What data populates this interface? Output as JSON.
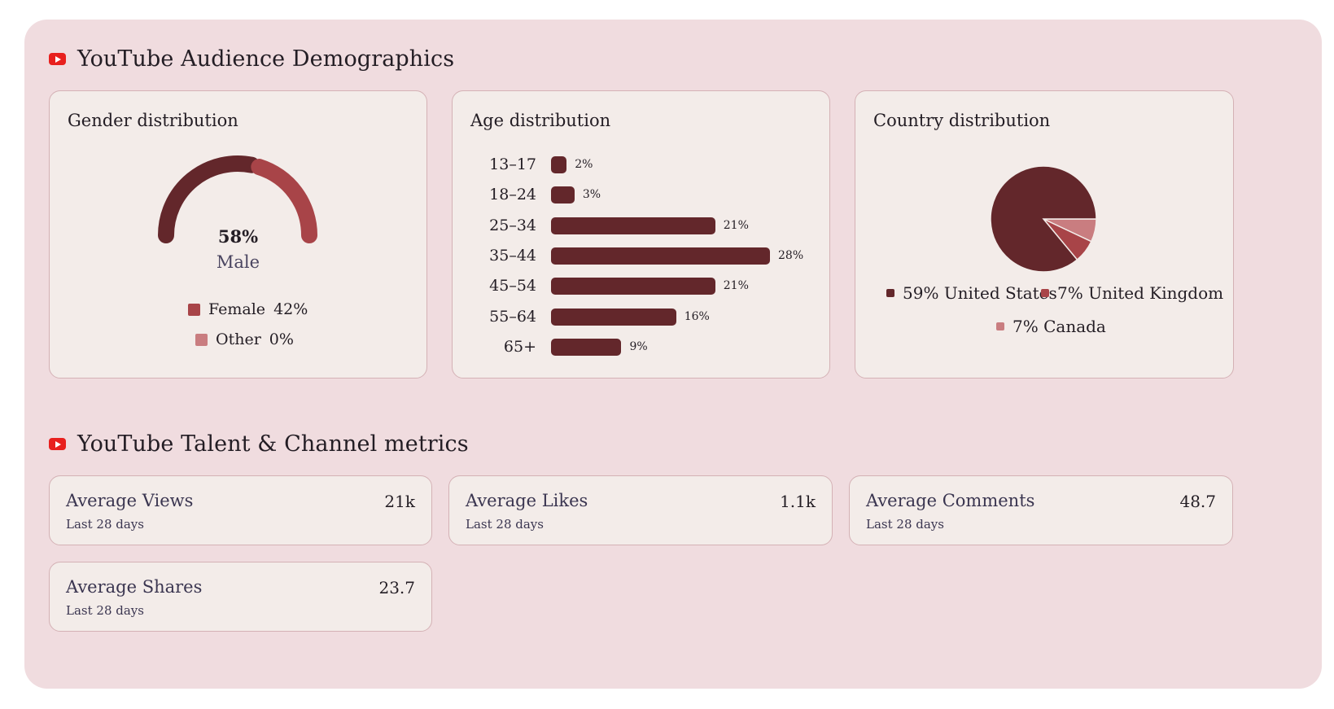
{
  "sections": {
    "demographics_title": "YouTube Audience Demographics",
    "metrics_title": "YouTube Talent & Channel metrics"
  },
  "gender": {
    "title": "Gender distribution",
    "gauge_value": "58%",
    "gauge_label": "Male",
    "male_fraction": 0.58,
    "legend": [
      {
        "label": "Female",
        "value": "42%",
        "color": "#a84448"
      },
      {
        "label": "Other",
        "value": "0%",
        "color": "#c97d80"
      }
    ],
    "colors": {
      "male": "#63272b",
      "female": "#a84448"
    }
  },
  "age": {
    "title": "Age distribution",
    "rows": [
      {
        "label": "13–17",
        "value": 2,
        "text": "2%"
      },
      {
        "label": "18–24",
        "value": 3,
        "text": "3%"
      },
      {
        "label": "25–34",
        "value": 21,
        "text": "21%"
      },
      {
        "label": "35–44",
        "value": 28,
        "text": "28%"
      },
      {
        "label": "45–54",
        "value": 21,
        "text": "21%"
      },
      {
        "label": "55–64",
        "value": 16,
        "text": "16%"
      },
      {
        "label": "65+",
        "value": 9,
        "text": "9%"
      }
    ],
    "max": 28
  },
  "country": {
    "title": "Country distribution",
    "slices": [
      {
        "label": "United States",
        "text": "59%",
        "value": 59,
        "color": "#63272b"
      },
      {
        "label": "United Kingdom",
        "text": "7%",
        "value": 7,
        "color": "#a84448"
      },
      {
        "label": "Canada",
        "text": "7%",
        "value": 7,
        "color": "#c97d80"
      }
    ]
  },
  "metrics": [
    {
      "label": "Average Views",
      "sub": "Last 28 days",
      "value": "21k"
    },
    {
      "label": "Average Likes",
      "sub": "Last 28 days",
      "value": "1.1k"
    },
    {
      "label": "Average Comments",
      "sub": "Last 28 days",
      "value": "48.7"
    },
    {
      "label": "Average Shares",
      "sub": "Last 28 days",
      "value": "23.7"
    }
  ],
  "chart_data": [
    {
      "type": "gauge",
      "title": "Gender distribution",
      "categories": [
        "Male",
        "Female",
        "Other"
      ],
      "values": [
        58,
        42,
        0
      ]
    },
    {
      "type": "bar",
      "title": "Age distribution",
      "categories": [
        "13–17",
        "18–24",
        "25–34",
        "35–44",
        "45–54",
        "55–64",
        "65+"
      ],
      "values": [
        2,
        3,
        21,
        28,
        21,
        16,
        9
      ]
    },
    {
      "type": "pie",
      "title": "Country distribution",
      "categories": [
        "United States",
        "United Kingdom",
        "Canada"
      ],
      "values": [
        59,
        7,
        7
      ]
    }
  ]
}
